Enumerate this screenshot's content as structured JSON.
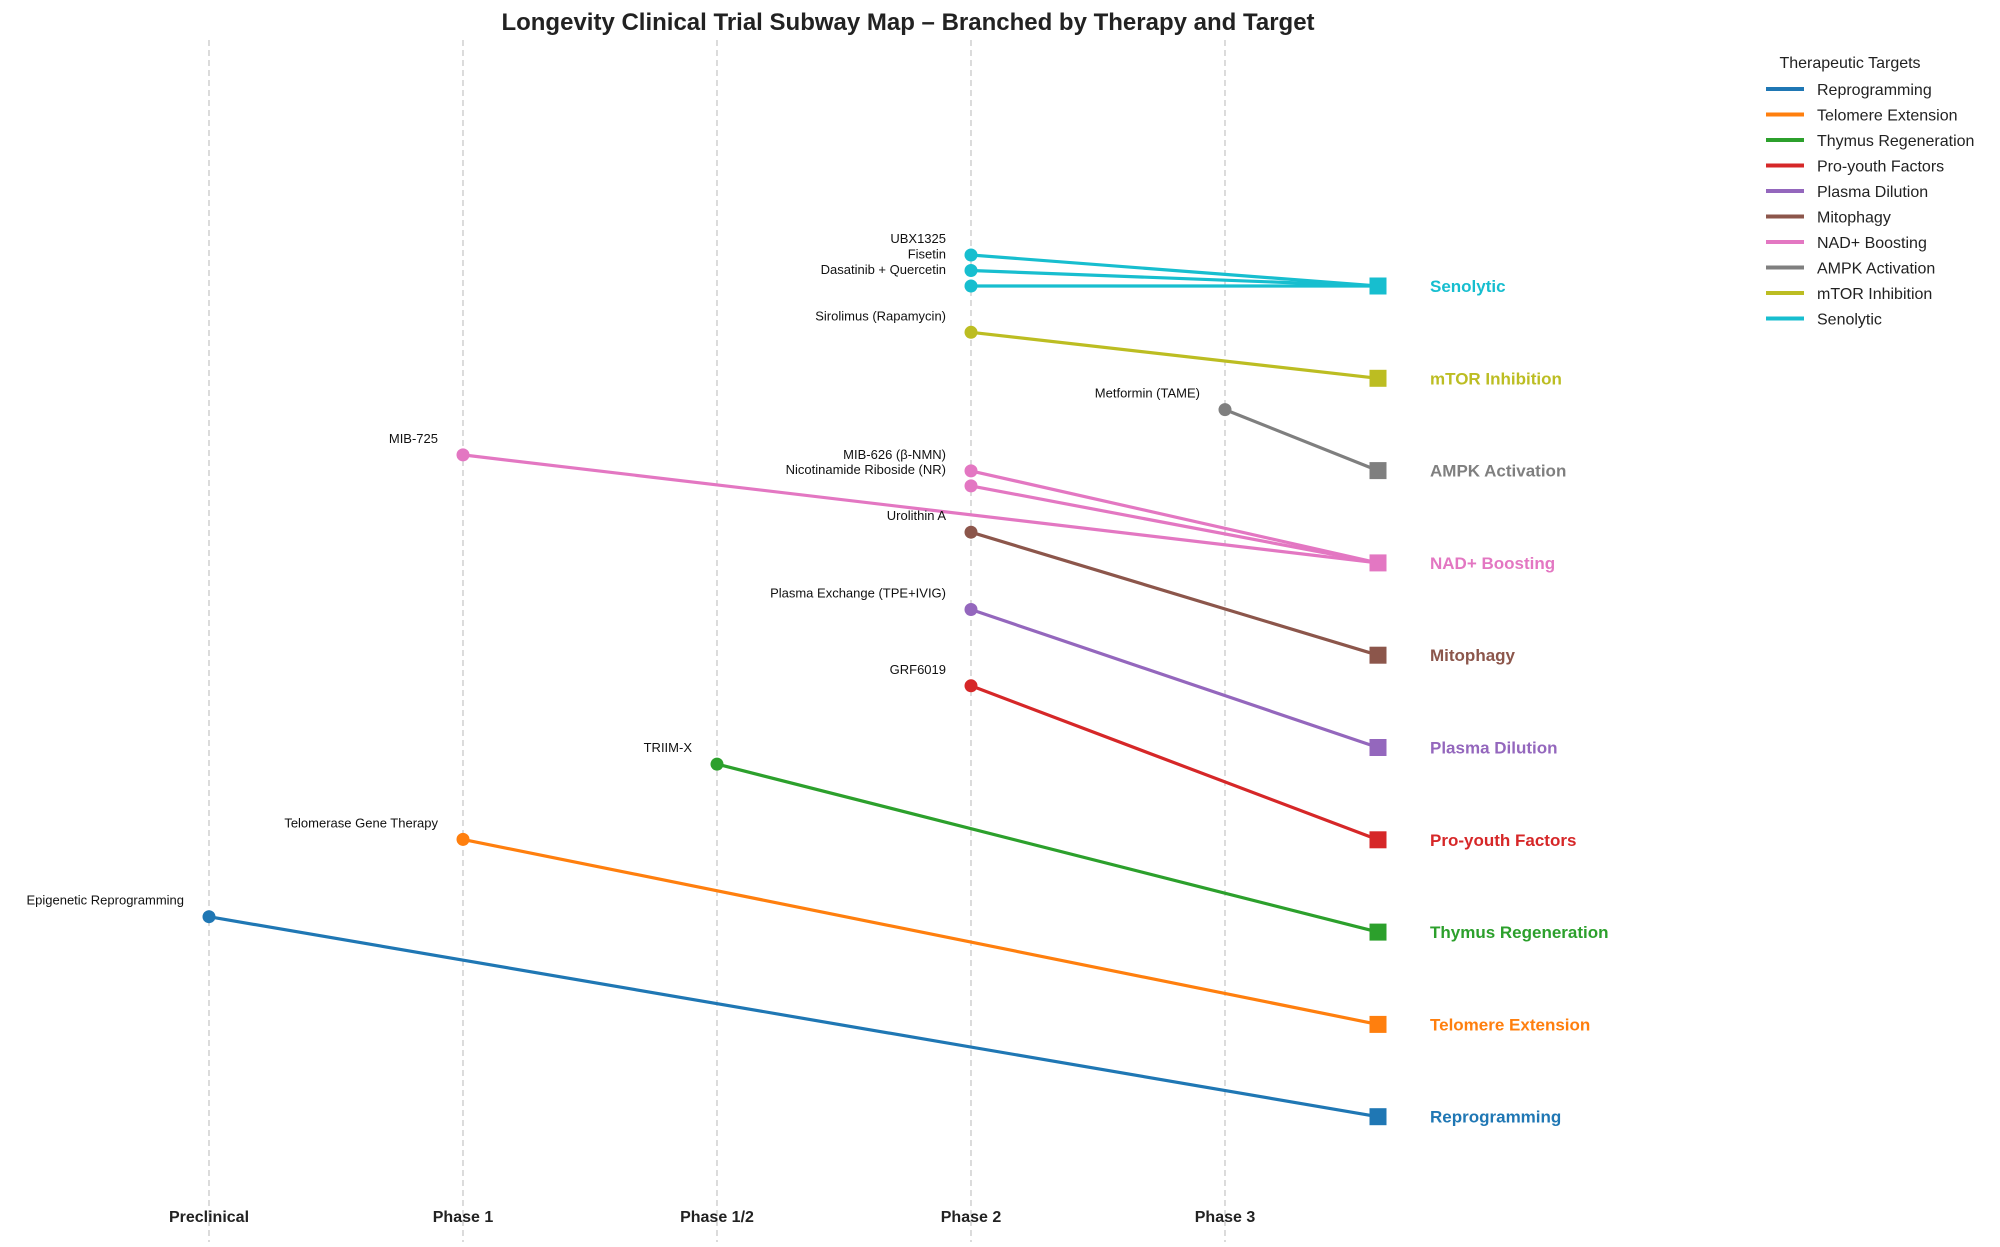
{
  "chart_data": {
    "type": "line",
    "title": "Longevity Clinical Trial Subway Map – Branched by Therapy and Target",
    "xlabel": "",
    "ylabel": "",
    "grid": "vertical dashed lines at phase ticks",
    "x_categories": [
      "Preclinical",
      "Phase 1",
      "Phase 1/2",
      "Phase 2",
      "Phase 3"
    ],
    "legend": {
      "title": "Therapeutic Targets",
      "placement": "top-right, outside plot",
      "entries": [
        "Reprogramming",
        "Telomere Extension",
        "Thymus Regeneration",
        "Pro-youth Factors",
        "Plasma Dilution",
        "Mitophagy",
        "NAD+ Boosting",
        "AMPK Activation",
        "mTOR Inhibition",
        "Senolytic"
      ]
    },
    "targets": [
      {
        "name": "Reprogramming",
        "color": "#1f77b4"
      },
      {
        "name": "Telomere Extension",
        "color": "#ff7f0e"
      },
      {
        "name": "Thymus Regeneration",
        "color": "#2ca02c"
      },
      {
        "name": "Pro-youth Factors",
        "color": "#d62728"
      },
      {
        "name": "Plasma Dilution",
        "color": "#9467bd"
      },
      {
        "name": "Mitophagy",
        "color": "#8c564b"
      },
      {
        "name": "NAD+ Boosting",
        "color": "#e377c2"
      },
      {
        "name": "AMPK Activation",
        "color": "#7f7f7f"
      },
      {
        "name": "mTOR Inhibition",
        "color": "#bcbd22"
      },
      {
        "name": "Senolytic",
        "color": "#17becf"
      }
    ],
    "therapies": [
      {
        "name": "Epigenetic Reprogramming",
        "phase": "Preclinical",
        "target": "Reprogramming"
      },
      {
        "name": "Telomerase Gene Therapy",
        "phase": "Phase 1",
        "target": "Telomere Extension"
      },
      {
        "name": "TRIIM-X",
        "phase": "Phase 1/2",
        "target": "Thymus Regeneration"
      },
      {
        "name": "GRF6019",
        "phase": "Phase 2",
        "target": "Pro-youth Factors"
      },
      {
        "name": "Plasma Exchange (TPE+IVIG)",
        "phase": "Phase 2",
        "target": "Plasma Dilution"
      },
      {
        "name": "Urolithin A",
        "phase": "Phase 2",
        "target": "Mitophagy"
      },
      {
        "name": "Nicotinamide Riboside (NR)",
        "phase": "Phase 2",
        "target": "NAD+ Boosting"
      },
      {
        "name": "MIB-626 (β-NMN)",
        "phase": "Phase 2",
        "target": "NAD+ Boosting"
      },
      {
        "name": "MIB-725",
        "phase": "Phase 1",
        "target": "NAD+ Boosting"
      },
      {
        "name": "Metformin (TAME)",
        "phase": "Phase 3",
        "target": "AMPK Activation"
      },
      {
        "name": "Sirolimus (Rapamycin)",
        "phase": "Phase 2",
        "target": "mTOR Inhibition"
      },
      {
        "name": "Dasatinib + Quercetin",
        "phase": "Phase 2",
        "target": "Senolytic"
      },
      {
        "name": "Fisetin",
        "phase": "Phase 2",
        "target": "Senolytic"
      },
      {
        "name": "UBX1325",
        "phase": "Phase 2",
        "target": "Senolytic"
      }
    ]
  }
}
